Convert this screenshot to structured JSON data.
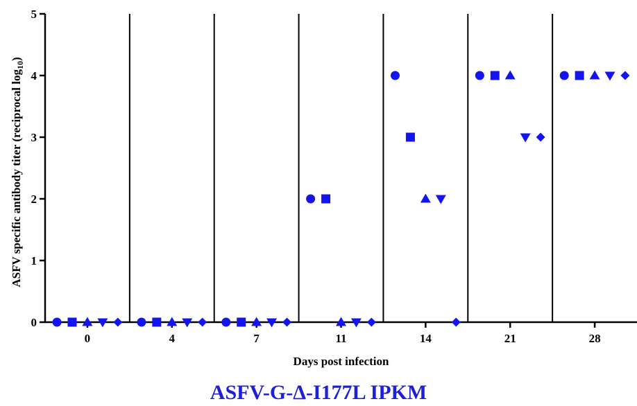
{
  "chart_data": {
    "type": "scatter",
    "title": "ASFV-G-Δ-I177L IPKM",
    "xlabel": "Days post infection",
    "ylabel_main": "ASFV specific  antibody titer (reciprocal log",
    "ylabel_sub": "10",
    "ylabel_close": ")",
    "categories": [
      "0",
      "4",
      "7",
      "11",
      "14",
      "21",
      "28"
    ],
    "ylim": [
      0,
      5
    ],
    "yticks": [
      "0",
      "1",
      "2",
      "3",
      "4",
      "5"
    ],
    "grid": false,
    "legend": "none",
    "marker_color": "#1414f0",
    "series": [
      {
        "marker": "circle",
        "values": [
          0,
          0,
          0,
          2,
          4,
          4,
          4
        ]
      },
      {
        "marker": "square",
        "values": [
          0,
          0,
          0,
          2,
          3,
          4,
          4
        ]
      },
      {
        "marker": "triangle-up",
        "values": [
          0,
          0,
          0,
          0,
          2,
          4,
          4
        ]
      },
      {
        "marker": "triangle-down",
        "values": [
          0,
          0,
          0,
          0,
          2,
          3,
          4
        ]
      },
      {
        "marker": "diamond",
        "values": [
          0,
          0,
          0,
          0,
          0,
          3,
          4
        ]
      }
    ]
  }
}
